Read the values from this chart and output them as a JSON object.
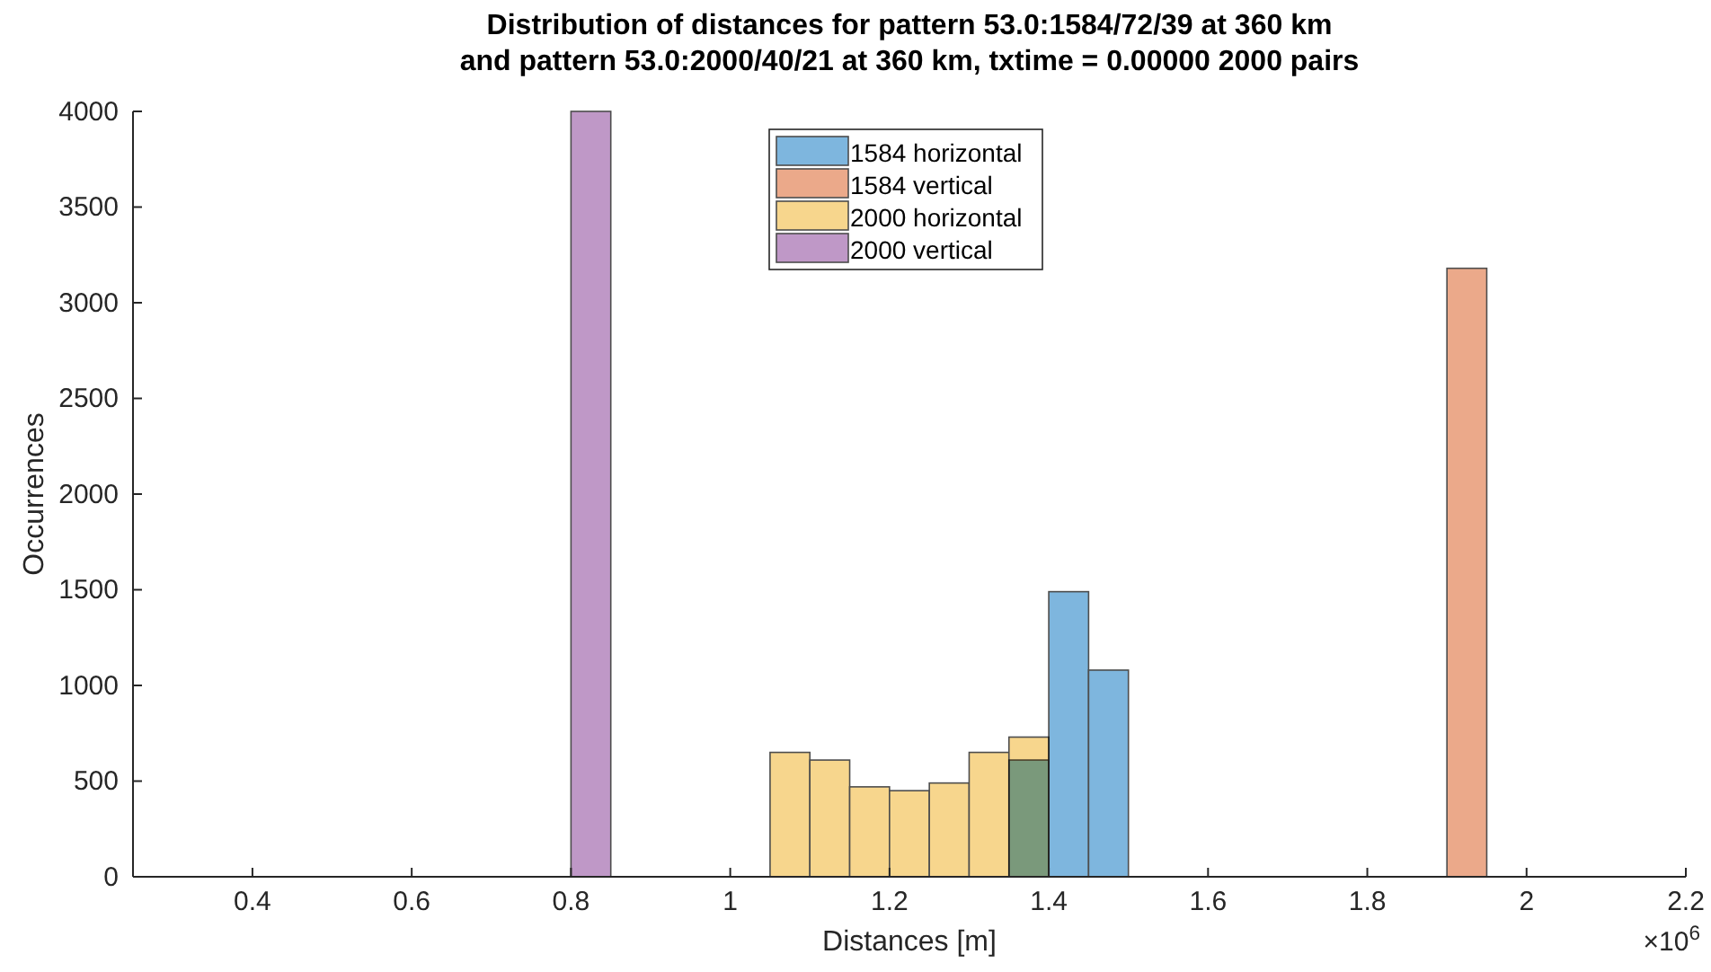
{
  "chart_data": {
    "type": "histogram",
    "title": "Distribution of distances for pattern 53.0:1584/72/39 at 360 km\nand pattern 53.0:2000/40/21 at 360 km, txtime = 0.00000 2000 pairs",
    "xlabel": "Distances [m]",
    "ylabel": "Occurrences",
    "annotations": [
      "×10$^{6}$"
    ],
    "bins": [
      0.8,
      0.85,
      0.9,
      0.95,
      1.0,
      1.05,
      1.1,
      1.15,
      1.2,
      1.25,
      1.3,
      1.35,
      1.4,
      1.45,
      1.5,
      1.55,
      1.6,
      1.65,
      1.7,
      1.75,
      1.8,
      1.85,
      1.9,
      1.95
    ],
    "series": [
      {
        "name": "1584 horizontal",
        "color": "#7eb6de",
        "values": [
          0,
          0,
          0,
          0,
          0,
          0,
          0,
          0,
          0,
          0,
          0,
          610,
          1490,
          1080,
          0,
          0,
          0,
          0,
          0,
          0,
          0,
          0,
          0
        ]
      },
      {
        "name": "1584 vertical",
        "color": "#eba98a",
        "values": [
          0,
          0,
          0,
          0,
          0,
          0,
          0,
          0,
          0,
          0,
          0,
          0,
          0,
          0,
          0,
          0,
          0,
          0,
          0,
          0,
          0,
          0,
          3180
        ]
      },
      {
        "name": "2000 horizontal",
        "color": "#f7d68d",
        "values": [
          0,
          0,
          0,
          0,
          0,
          650,
          610,
          470,
          450,
          490,
          650,
          730,
          0,
          0,
          0,
          0,
          0,
          0,
          0,
          0,
          0,
          0,
          0
        ]
      },
      {
        "name": "2000 vertical",
        "color": "#bf98c7",
        "values": [
          4000,
          0,
          0,
          0,
          0,
          0,
          0,
          0,
          0,
          0,
          0,
          0,
          0,
          0,
          0,
          0,
          0,
          0,
          0,
          0,
          0,
          0,
          0
        ]
      }
    ],
    "xlim": [
      0.25,
      2.2
    ],
    "xticks": [
      {
        "value": 0.4,
        "label": "0.4"
      },
      {
        "value": 0.6,
        "label": "0.6"
      },
      {
        "value": 0.8,
        "label": "0.8"
      },
      {
        "value": 1,
        "label": "1"
      },
      {
        "value": 1.2,
        "label": "1.2"
      },
      {
        "value": 1.4,
        "label": "1.4"
      },
      {
        "value": 1.6,
        "label": "1.6"
      },
      {
        "value": 1.8,
        "label": "1.8"
      },
      {
        "value": 2,
        "label": "2"
      },
      {
        "value": 2.2,
        "label": "2.2"
      }
    ],
    "ylim": [
      0,
      4000
    ],
    "yticks": [
      0,
      500,
      1000,
      1500,
      2000,
      2500,
      3000,
      3500,
      4000
    ],
    "legend": "top",
    "grid": false
  }
}
